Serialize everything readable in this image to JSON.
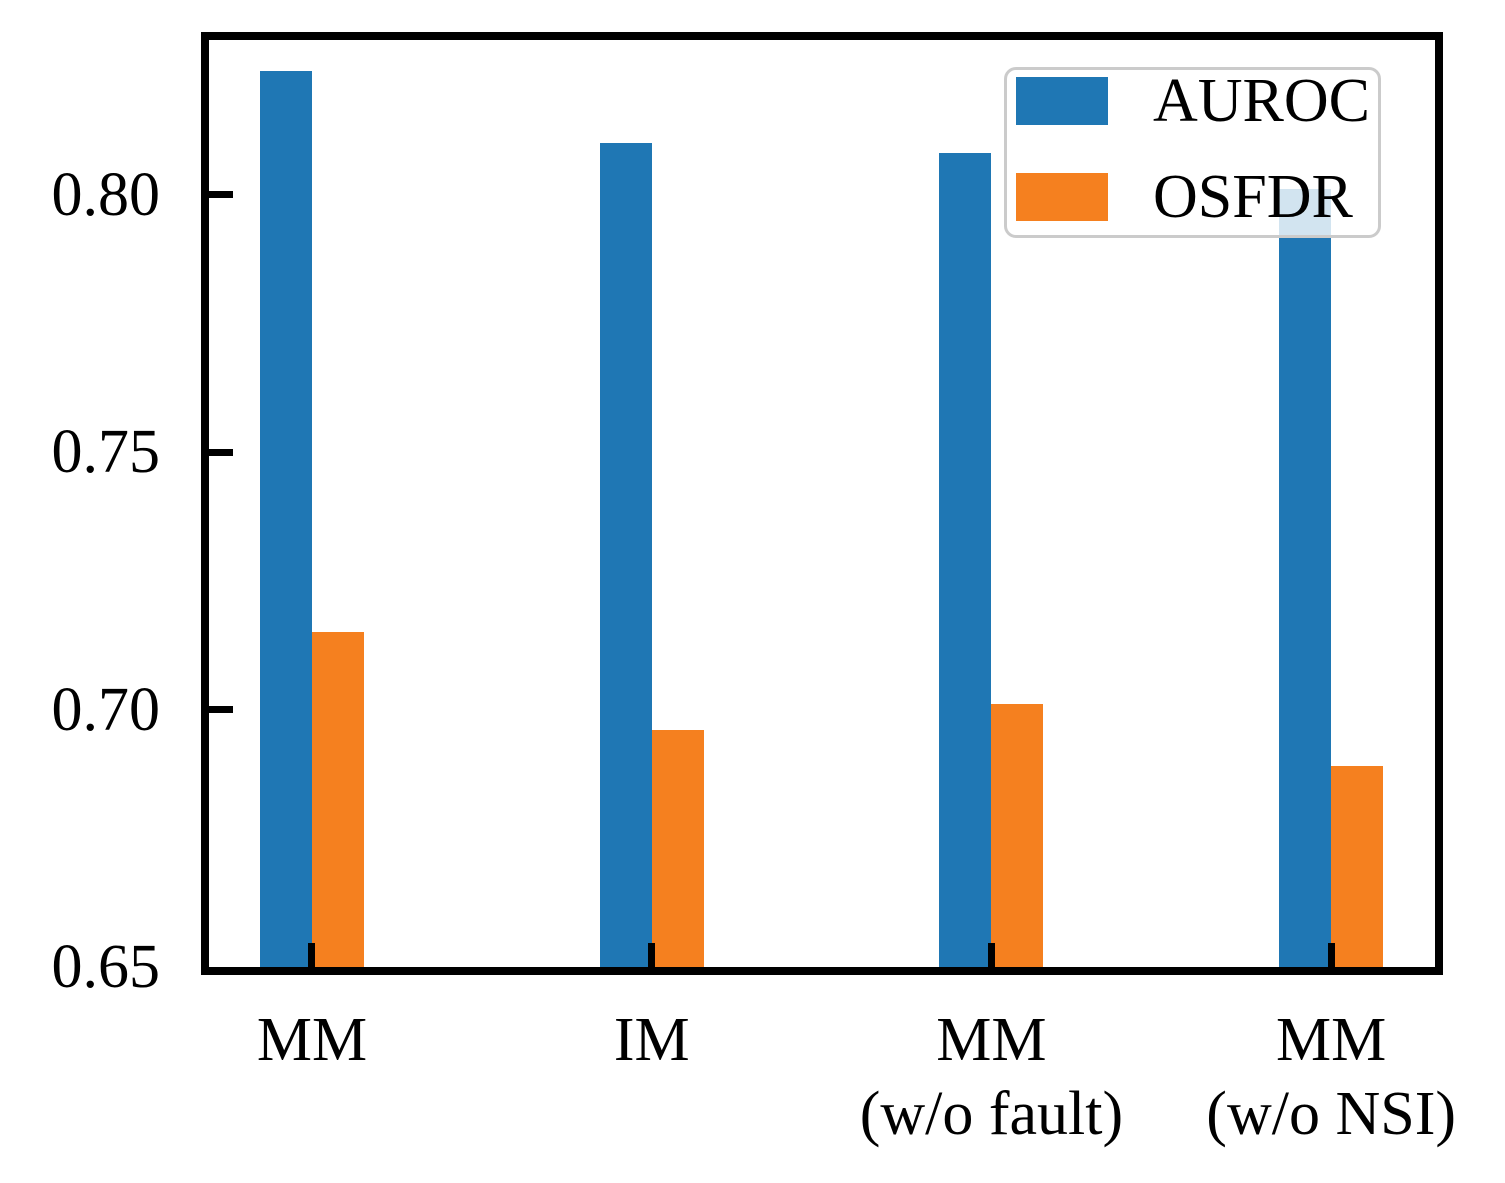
{
  "chart_data": {
    "type": "bar",
    "title": "",
    "categories": [
      "MM",
      "IM",
      "MM\n(w/o fault)",
      "MM\n(w/o NSI)"
    ],
    "categories_lines": [
      [
        "MM"
      ],
      [
        "IM"
      ],
      [
        "MM",
        "(w/o fault)"
      ],
      [
        "MM",
        "(w/o NSI)"
      ]
    ],
    "series": [
      {
        "name": "AUROC",
        "color": "#1f77b4",
        "values": [
          0.824,
          0.81,
          0.808,
          0.801
        ]
      },
      {
        "name": "OSFDR",
        "color": "#f5801f",
        "values": [
          0.715,
          0.696,
          0.701,
          0.689
        ]
      }
    ],
    "xlabel": "",
    "ylabel": "",
    "ylim": [
      0.65,
      0.83
    ],
    "yticks": [
      0.65,
      0.7,
      0.75,
      0.8
    ],
    "ytick_labels": [
      "0.65",
      "0.70",
      "0.75",
      "0.80"
    ],
    "grid": false,
    "tick_direction": "in",
    "bar_group": "paired-adjacent",
    "legend": {
      "position": "upper right",
      "entries": [
        "AUROC",
        "OSFDR"
      ],
      "border_color": "#cbcbcb",
      "background": "rgba(255,255,255,0.8)"
    },
    "axis_color": "#000000"
  }
}
